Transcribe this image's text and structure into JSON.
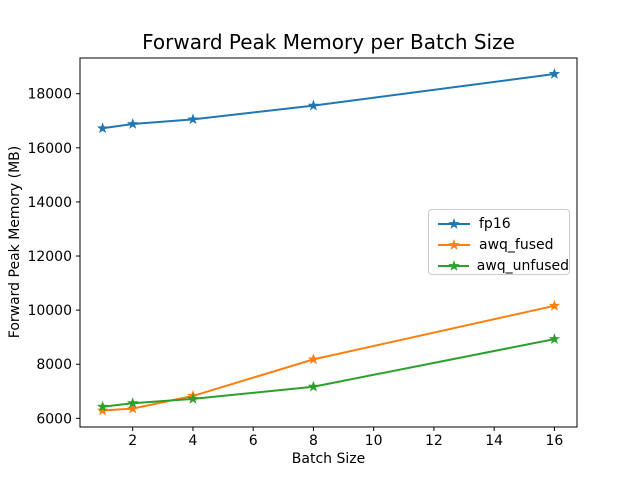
{
  "chart_data": {
    "type": "line",
    "title": "Forward Peak Memory per Batch Size",
    "xlabel": "Batch Size",
    "ylabel": "Forward Peak Memory (MB)",
    "x": [
      1,
      2,
      4,
      8,
      16
    ],
    "series": [
      {
        "name": "fp16",
        "color": "#1f77b4",
        "marker": "star",
        "values": [
          16720,
          16880,
          17050,
          17560,
          18730
        ]
      },
      {
        "name": "awq_fused",
        "color": "#ff7f0e",
        "marker": "star",
        "values": [
          6290,
          6360,
          6830,
          8180,
          10160
        ]
      },
      {
        "name": "awq_unfused",
        "color": "#2ca02c",
        "marker": "star",
        "values": [
          6430,
          6560,
          6720,
          7170,
          8930
        ]
      }
    ],
    "xticks": [
      2,
      4,
      6,
      8,
      10,
      12,
      14,
      16
    ],
    "yticks": [
      6000,
      8000,
      10000,
      12000,
      14000,
      16000,
      18000
    ],
    "xlim": [
      0.25,
      16.75
    ],
    "ylim": [
      5680,
      19320
    ],
    "grid": false,
    "legend": {
      "position": "center-right",
      "border_color": "#cccccc"
    },
    "axis_color": "#000000",
    "background": "#ffffff"
  }
}
